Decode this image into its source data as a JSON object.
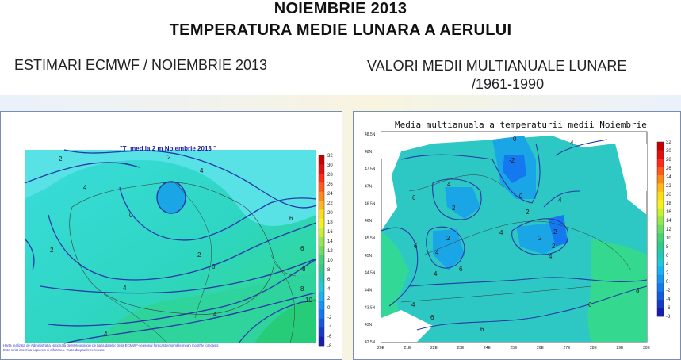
{
  "header": {
    "title_line1": "NOIEMBRIE 2013",
    "title_line2": "TEMPERATURA MEDIE LUNARA A AERULUI"
  },
  "left_panel": {
    "subtitle": "ESTIMARI ECMWF / NOIEMBRIE 2013",
    "map_title": "\"T_med la 2 m Noiembrie 2013 \"",
    "colorbar_labels": [
      "32",
      "30",
      "28",
      "26",
      "24",
      "22",
      "20",
      "18",
      "16",
      "14",
      "12",
      "10",
      "8",
      "6",
      "4",
      "2",
      "0",
      "-2",
      "-4",
      "-6",
      "-8"
    ],
    "contour_labels": [
      "2",
      "4",
      "4",
      "0",
      "2",
      "6",
      "6",
      "8",
      "8",
      "10",
      "2",
      "4",
      "4",
      "6",
      "4",
      "2"
    ],
    "footer_note_line1": "Harta realizata de Administratia Nationala de Meteorologie pe baza datelor de la ECMWF-seasonal forecast ensemble mean monthly forecasts",
    "footer_note_line2": "Este strict interzisa copierea si difuzarea. Toate drepturile rezervate."
  },
  "right_panel": {
    "subtitle_line1": "VALORI MEDII MULTIANUALE LUNARE",
    "subtitle_line2": "/1961-1990",
    "map_title": "Media multianuala a temperaturii medii Noiembrie",
    "colorbar_labels": [
      "32",
      "30",
      "28",
      "26",
      "24",
      "22",
      "20",
      "18",
      "16",
      "14",
      "12",
      "10",
      "8",
      "6",
      "4",
      "2",
      "0",
      "-2",
      "-4",
      "-6",
      "-8"
    ],
    "lat_labels": [
      "48.5N",
      "48N",
      "47.5N",
      "47N",
      "46.5N",
      "46N",
      "45.5N",
      "45N",
      "44.5N",
      "44N",
      "43.5N",
      "43N",
      "42.5N"
    ],
    "lon_labels": [
      "20E",
      "21E",
      "22E",
      "23E",
      "24E",
      "25E",
      "26E",
      "27E",
      "28E",
      "29E",
      "30E"
    ],
    "contour_labels": [
      "0",
      "-2",
      "4",
      "4",
      "6",
      "4",
      "2",
      "2",
      "0",
      "4",
      "2",
      "2",
      "2",
      "4",
      "2",
      "4",
      "4",
      "6",
      "6",
      "6",
      "8",
      "6",
      "6",
      "4"
    ]
  },
  "colors": {
    "cb_colors": [
      "#c80000",
      "#e01010",
      "#ff2a1a",
      "#ff5a1a",
      "#ff8a1a",
      "#ffb81a",
      "#ffdc1a",
      "#f2f220",
      "#c8f032",
      "#96e650",
      "#6edc64",
      "#46d278",
      "#2ecb8c",
      "#22c8b4",
      "#20c8d8",
      "#18b4f0",
      "#1496f5",
      "#1478f0",
      "#145adc",
      "#143cc8",
      "#1a1ab4"
    ],
    "contour_line": "#2438a8",
    "land_teal": "#2ec8c4",
    "land_cyan": "#3adcdc",
    "land_green": "#32d896",
    "cold_blue": "#1aa6e6"
  }
}
